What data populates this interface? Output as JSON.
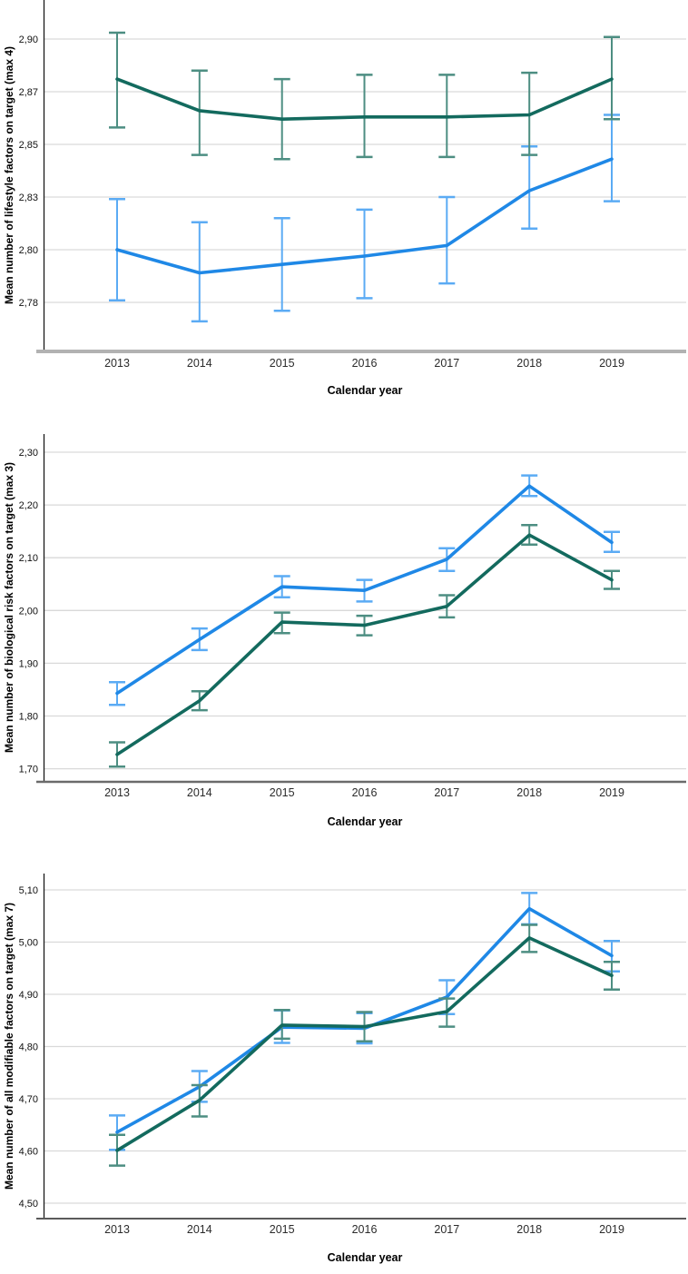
{
  "page": {
    "background": "#ffffff"
  },
  "x_axis_title": "Calendar year",
  "chart_data": [
    {
      "type": "line",
      "id": "lifestyle",
      "ylabel": "Mean number of lifestyle factors on target (max 4)",
      "xlabel": "Calendar year",
      "categories": [
        "2013",
        "2014",
        "2015",
        "2016",
        "2017",
        "2018",
        "2019"
      ],
      "grid": true,
      "legend": "none",
      "ylim": [
        2.752,
        2.918
      ],
      "y_ticks": [
        {
          "value": 2.9,
          "label": "2,90"
        },
        {
          "value": 2.875,
          "label": "2,87"
        },
        {
          "value": 2.85,
          "label": "2,85"
        },
        {
          "value": 2.825,
          "label": "2,83"
        },
        {
          "value": 2.8,
          "label": "2,80"
        },
        {
          "value": 2.775,
          "label": "2,78"
        }
      ],
      "series": [
        {
          "key": "blue",
          "color": "#1f88e6",
          "error_color": "#5babf4",
          "means": [
            2.8,
            2.789,
            2.793,
            2.797,
            2.802,
            2.828,
            2.843
          ],
          "ci_low": [
            2.776,
            2.766,
            2.771,
            2.777,
            2.784,
            2.81,
            2.823
          ],
          "ci_high": [
            2.824,
            2.813,
            2.815,
            2.819,
            2.825,
            2.849,
            2.864
          ]
        },
        {
          "key": "teal",
          "color": "#136a5e",
          "error_color": "#4d8e82",
          "means": [
            2.881,
            2.866,
            2.862,
            2.863,
            2.863,
            2.864,
            2.881
          ],
          "ci_low": [
            2.858,
            2.845,
            2.843,
            2.844,
            2.844,
            2.845,
            2.862
          ],
          "ci_high": [
            2.903,
            2.885,
            2.881,
            2.883,
            2.883,
            2.884,
            2.901
          ]
        }
      ]
    },
    {
      "type": "line",
      "id": "biological",
      "ylabel": "Mean number of biological risk factors on target (max 3)",
      "xlabel": "Calendar year",
      "categories": [
        "2013",
        "2014",
        "2015",
        "2016",
        "2017",
        "2018",
        "2019"
      ],
      "grid": true,
      "legend": "none",
      "ylim": [
        1.675,
        2.334
      ],
      "y_ticks": [
        {
          "value": 2.3,
          "label": "2,30"
        },
        {
          "value": 2.2,
          "label": "2,20"
        },
        {
          "value": 2.1,
          "label": "2,10"
        },
        {
          "value": 2.0,
          "label": "2,00"
        },
        {
          "value": 1.9,
          "label": "1,90"
        },
        {
          "value": 1.8,
          "label": "1,80"
        },
        {
          "value": 1.7,
          "label": "1,70"
        }
      ],
      "series": [
        {
          "key": "blue",
          "color": "#1f88e6",
          "error_color": "#5babf4",
          "means": [
            1.843,
            1.945,
            2.045,
            2.038,
            2.097,
            2.236,
            2.129
          ],
          "ci_low": [
            1.821,
            1.925,
            2.025,
            2.017,
            2.075,
            2.217,
            2.111
          ],
          "ci_high": [
            1.864,
            1.966,
            2.065,
            2.058,
            2.118,
            2.256,
            2.149
          ]
        },
        {
          "key": "teal",
          "color": "#136a5e",
          "error_color": "#4d8e82",
          "means": [
            1.727,
            1.829,
            1.978,
            1.972,
            2.008,
            2.143,
            2.058
          ],
          "ci_low": [
            1.704,
            1.811,
            1.957,
            1.953,
            1.987,
            2.125,
            2.041
          ],
          "ci_high": [
            1.75,
            1.847,
            1.996,
            1.99,
            2.029,
            2.162,
            2.075
          ]
        }
      ]
    },
    {
      "type": "line",
      "id": "modifiable",
      "ylabel": "Mean number of all modifiable factors on target (max 7)",
      "xlabel": "Calendar year",
      "categories": [
        "2013",
        "2014",
        "2015",
        "2016",
        "2017",
        "2018",
        "2019"
      ],
      "grid": true,
      "legend": "none",
      "ylim": [
        4.468,
        5.131
      ],
      "y_ticks": [
        {
          "value": 5.1,
          "label": "5,10"
        },
        {
          "value": 5.0,
          "label": "5,00"
        },
        {
          "value": 4.9,
          "label": "4,90"
        },
        {
          "value": 4.8,
          "label": "4,80"
        },
        {
          "value": 4.7,
          "label": "4,70"
        },
        {
          "value": 4.6,
          "label": "4,60"
        },
        {
          "value": 4.5,
          "label": "4,50"
        }
      ],
      "series": [
        {
          "key": "blue",
          "color": "#1f88e6",
          "error_color": "#5babf4",
          "means": [
            4.636,
            4.723,
            4.837,
            4.835,
            4.895,
            5.064,
            4.974
          ],
          "ci_low": [
            4.602,
            4.694,
            4.807,
            4.806,
            4.862,
            5.034,
            4.944
          ],
          "ci_high": [
            4.668,
            4.753,
            4.869,
            4.864,
            4.927,
            5.094,
            5.002
          ]
        },
        {
          "key": "teal",
          "color": "#136a5e",
          "error_color": "#4d8e82",
          "means": [
            4.601,
            4.697,
            4.841,
            4.838,
            4.867,
            5.008,
            4.936
          ],
          "ci_low": [
            4.572,
            4.666,
            4.815,
            4.81,
            4.838,
            4.981,
            4.909
          ],
          "ci_high": [
            4.631,
            4.726,
            4.87,
            4.866,
            4.892,
            5.033,
            4.962
          ]
        }
      ]
    }
  ]
}
